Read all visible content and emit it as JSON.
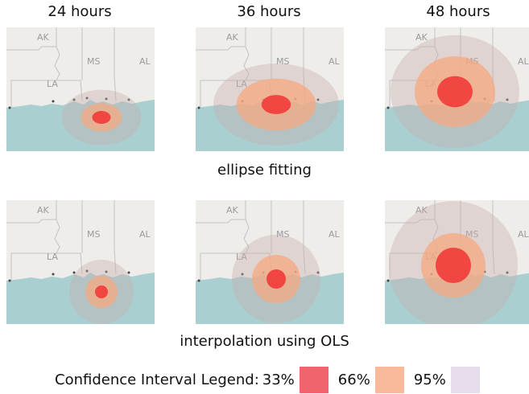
{
  "columns": [
    "24 hours",
    "36 hours",
    "48 hours"
  ],
  "rows": [
    {
      "caption": "ellipse fitting"
    },
    {
      "caption": "interpolation using OLS"
    }
  ],
  "map_labels": [
    "AK",
    "MS",
    "AL",
    "LA"
  ],
  "legend": {
    "title": "Confidence Interval Legend:",
    "items": [
      {
        "label": "33%",
        "color": "#f0646e"
      },
      {
        "label": "66%",
        "color": "#f8b89a"
      },
      {
        "label": "95%",
        "color": "#e6dcec"
      }
    ]
  },
  "colors": {
    "land": "#efedea",
    "water": "#a9cfd1",
    "border": "#c2c2c2",
    "ring33": "#f23a3a",
    "ring66": "#f6aa80",
    "ring95": "#c8b0b0"
  }
}
